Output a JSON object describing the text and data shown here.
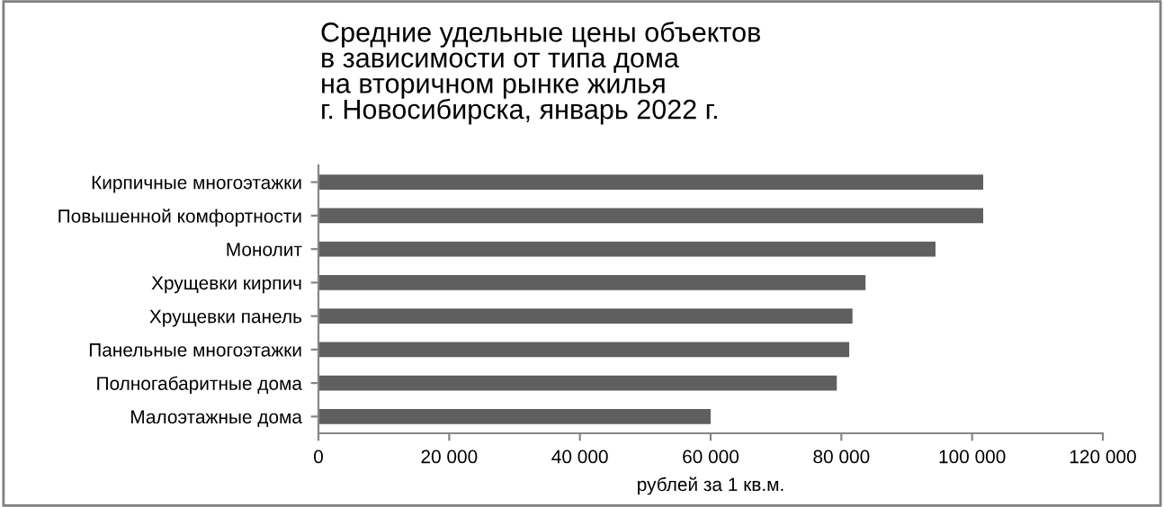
{
  "chart_data": {
    "type": "bar",
    "orientation": "horizontal",
    "title": "Средние удельные цены объектов\nв зависимости от типа дома\nна вторичном рынке жилья\nг. Новосибирска, январь 2022 г.",
    "xlabel": "рублей за 1 кв.м.",
    "categories": [
      "Кирпичные многоэтажки",
      "Повышенной комфортности",
      "Монолит",
      "Хрущевки кирпич",
      "Хрущевки панель",
      "Панельные многоэтажки",
      "Полногабаритные дома",
      "Малоэтажные дома"
    ],
    "values": [
      101700,
      101700,
      94400,
      83700,
      81700,
      81200,
      79300,
      60000
    ],
    "color": "#5f5f5f",
    "xlim": [
      0,
      120000
    ],
    "xticks": [
      {
        "value": 0,
        "label": "0"
      },
      {
        "value": 20000,
        "label": "20 000"
      },
      {
        "value": 40000,
        "label": "40 000"
      },
      {
        "value": 60000,
        "label": "60 000"
      },
      {
        "value": 80000,
        "label": "80 000"
      },
      {
        "value": 100000,
        "label": "100 000"
      },
      {
        "value": 120000,
        "label": "120 000"
      }
    ],
    "grid": false,
    "legend": false
  }
}
